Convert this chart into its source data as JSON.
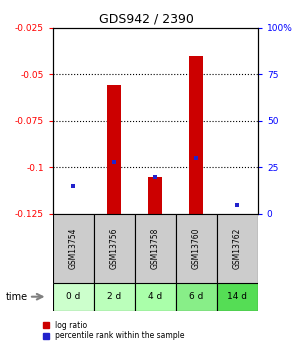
{
  "title": "GDS942 / 2390",
  "samples": [
    "GSM13754",
    "GSM13756",
    "GSM13758",
    "GSM13760",
    "GSM13762"
  ],
  "time_labels": [
    "0 d",
    "2 d",
    "4 d",
    "6 d",
    "14 d"
  ],
  "log_ratio": [
    -0.127,
    -0.056,
    -0.105,
    -0.04,
    -0.127
  ],
  "percentile_rank": [
    15,
    28,
    20,
    30,
    5
  ],
  "ylim_left": [
    -0.125,
    -0.025
  ],
  "ylim_right": [
    0,
    100
  ],
  "yticks_left": [
    -0.125,
    -0.1,
    -0.075,
    -0.05,
    -0.025
  ],
  "yticks_right": [
    0,
    25,
    50,
    75,
    100
  ],
  "bar_color": "#cc0000",
  "dot_color": "#2222cc",
  "bar_width": 0.35,
  "time_cell_colors": [
    "#ccffcc",
    "#bbffbb",
    "#aaffaa",
    "#88ee88",
    "#55dd55"
  ],
  "sample_cell_color": "#cccccc",
  "legend_log_ratio": "log ratio",
  "legend_percentile": "percentile rank within the sample",
  "time_label": "time",
  "title_fontsize": 9,
  "tick_fontsize": 6.5
}
